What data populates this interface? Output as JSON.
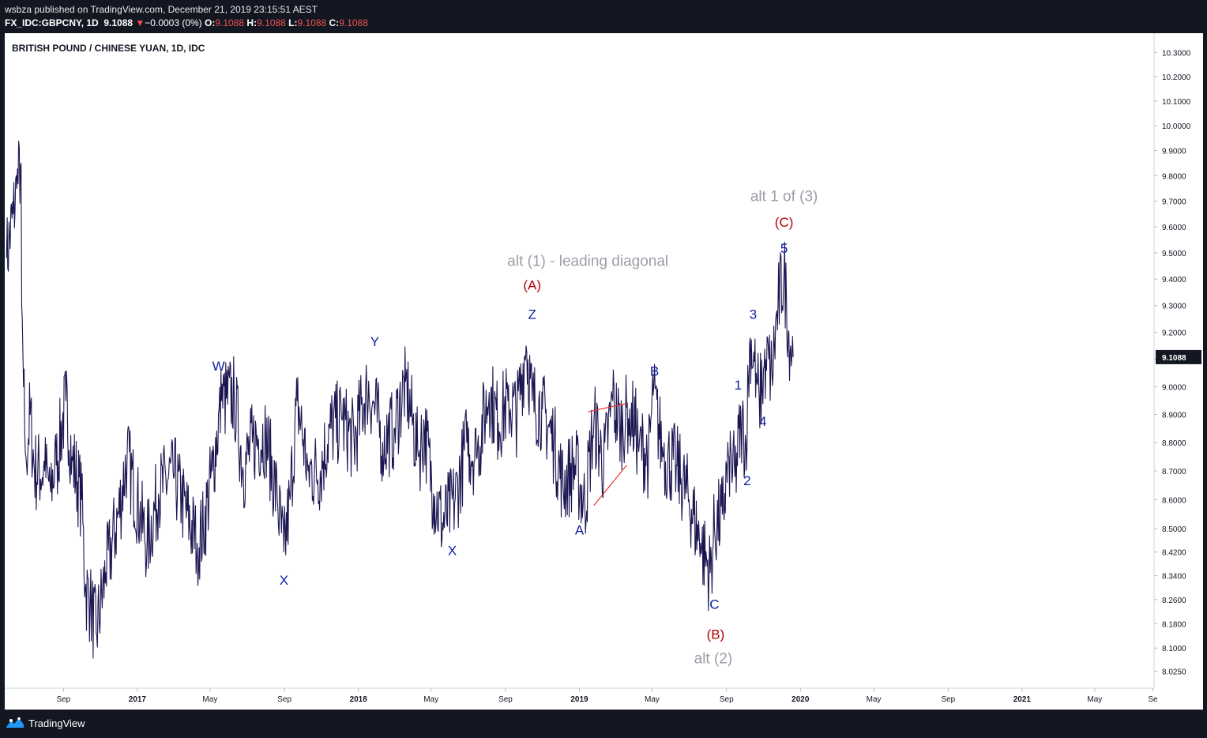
{
  "header": {
    "published_line": "wsbza published on TradingView.com, December 21, 2019 23:15:51 AEST",
    "symbol": "FX_IDC:GBPCNY, 1D",
    "last": "9.1088",
    "change_arrow": "▼",
    "change": "−0.0003 (0%)",
    "o_label": "O:",
    "o": "9.1088",
    "h_label": "H:",
    "h": "9.1088",
    "l_label": "L:",
    "l": "9.1088",
    "c_label": "C:",
    "c": "9.1088"
  },
  "footer": {
    "brand": "TradingView",
    "logo_icon": "tradingview-logo-icon"
  },
  "colors": {
    "background_frame": "#131722",
    "chart_background": "#ffffff",
    "price_series": "#1b1651",
    "wave_blue": "#0b1ea3",
    "wave_red": "#b00000",
    "wave_gray": "#9a9ea6",
    "trendline": "#ef3030",
    "last_price_tag": "#131722"
  },
  "chart_data": {
    "type": "line",
    "title": "BRITISH POUND / CHINESE YUAN, 1D, IDC",
    "y_axis": {
      "ticks": [
        "10.3000",
        "10.2000",
        "10.1000",
        "10.0000",
        "9.9000",
        "9.8000",
        "9.7000",
        "9.6000",
        "9.5000",
        "9.4000",
        "9.3000",
        "9.2000",
        "9.1000",
        "9.0000",
        "8.9000",
        "8.8000",
        "8.7000",
        "8.6000",
        "8.5000",
        "8.4200",
        "8.3400",
        "8.2600",
        "8.1800",
        "8.1000",
        "8.0250"
      ],
      "scale": "log",
      "ylim": [
        7.97,
        10.38
      ]
    },
    "x_axis": {
      "ticks": [
        "Sep",
        "2017",
        "May",
        "Sep",
        "2018",
        "May",
        "Sep",
        "2019",
        "May",
        "Sep",
        "2020",
        "May",
        "Sep",
        "2021",
        "May",
        "Se"
      ],
      "xlim": [
        "2016-05-27",
        "2021-08-07"
      ]
    },
    "last_price_tag": "9.1088",
    "series": [
      {
        "x": [
          "2016-05-30",
          "2016-06-10",
          "2016-06-16",
          "2016-06-23",
          "2016-06-24",
          "2016-06-27",
          "2016-07-01",
          "2016-07-08",
          "2016-07-15",
          "2016-08-01",
          "2016-08-10",
          "2016-08-20",
          "2016-09-05",
          "2016-09-15",
          "2016-10-01",
          "2016-10-07",
          "2016-10-15",
          "2016-10-25",
          "2016-11-10",
          "2016-12-01",
          "2016-12-15",
          "2017-01-05",
          "2017-01-17",
          "2017-02-05",
          "2017-03-01",
          "2017-03-15",
          "2017-04-10",
          "2017-04-20",
          "2017-05-05",
          "2017-05-20",
          "2017-06-10",
          "2017-06-25",
          "2017-07-10",
          "2017-08-01",
          "2017-08-20",
          "2017-08-31",
          "2017-09-10",
          "2017-09-22",
          "2017-10-10",
          "2017-10-30",
          "2017-11-15",
          "2017-12-05",
          "2017-12-25",
          "2018-01-15",
          "2018-01-25",
          "2018-02-10",
          "2018-03-01",
          "2018-03-20",
          "2018-04-10",
          "2018-04-20",
          "2018-05-05",
          "2018-05-20",
          "2018-06-10",
          "2018-06-29",
          "2018-07-15",
          "2018-08-05",
          "2018-08-20",
          "2018-09-05",
          "2018-09-20",
          "2018-10-05",
          "2018-10-15",
          "2018-11-01",
          "2018-11-20",
          "2018-12-05",
          "2018-12-25",
          "2019-01-10",
          "2019-01-25",
          "2019-02-10",
          "2019-02-25",
          "2019-03-10",
          "2019-03-25",
          "2019-04-10",
          "2019-04-25",
          "2019-05-03",
          "2019-05-20",
          "2019-06-10",
          "2019-07-01",
          "2019-07-20",
          "2019-08-05",
          "2019-08-12",
          "2019-08-25",
          "2019-09-05",
          "2019-09-15",
          "2019-09-25",
          "2019-10-03",
          "2019-10-10",
          "2019-10-20",
          "2019-10-25",
          "2019-11-05",
          "2019-11-15",
          "2019-11-25",
          "2019-12-05",
          "2019-12-13",
          "2019-12-16",
          "2019-12-20"
        ],
        "y": [
          9.48,
          9.65,
          9.75,
          9.85,
          9.3,
          9.0,
          8.75,
          8.9,
          8.7,
          8.7,
          8.65,
          8.72,
          8.95,
          8.75,
          8.6,
          8.3,
          8.25,
          8.15,
          8.35,
          8.55,
          8.75,
          8.55,
          8.45,
          8.62,
          8.7,
          8.6,
          8.45,
          8.5,
          8.7,
          8.95,
          8.97,
          8.7,
          8.8,
          8.83,
          8.6,
          8.42,
          8.6,
          8.95,
          8.7,
          8.7,
          8.85,
          8.88,
          8.8,
          9.0,
          8.95,
          8.8,
          8.85,
          9.02,
          8.75,
          8.85,
          8.62,
          8.52,
          8.6,
          8.8,
          8.75,
          8.98,
          8.87,
          8.95,
          8.9,
          9.15,
          8.95,
          8.92,
          8.8,
          8.65,
          8.72,
          8.58,
          8.88,
          8.72,
          8.95,
          8.85,
          8.92,
          8.8,
          8.75,
          8.97,
          8.75,
          8.72,
          8.6,
          8.45,
          8.35,
          8.5,
          8.55,
          8.75,
          8.68,
          8.87,
          8.8,
          9.18,
          9.05,
          8.95,
          9.1,
          9.05,
          9.3,
          9.43,
          9.2,
          9.15,
          9.1088
        ]
      }
    ],
    "trendlines": [
      {
        "x": [
          "2019-01-15",
          "2019-03-20"
        ],
        "y": [
          8.91,
          8.94
        ]
      },
      {
        "x": [
          "2019-01-25",
          "2019-03-20"
        ],
        "y": [
          8.58,
          8.72
        ]
      }
    ],
    "annotations": [
      {
        "text": "W",
        "x": "2017-05-15",
        "y": 9.06,
        "color": "blue"
      },
      {
        "text": "X",
        "x": "2017-08-31",
        "y": 8.31,
        "color": "blue"
      },
      {
        "text": "Y",
        "x": "2018-01-28",
        "y": 9.15,
        "color": "blue"
      },
      {
        "text": "X",
        "x": "2018-06-05",
        "y": 8.41,
        "color": "blue"
      },
      {
        "text": "Z",
        "x": "2018-10-15",
        "y": 9.25,
        "color": "blue"
      },
      {
        "text": "(A)",
        "x": "2018-10-15",
        "y": 9.36,
        "color": "red"
      },
      {
        "text": "alt (1) - leading diagonal",
        "x": "2019-01-15",
        "y": 9.45,
        "color": "gray"
      },
      {
        "text": "A",
        "x": "2019-01-01",
        "y": 8.48,
        "color": "blue"
      },
      {
        "text": "B",
        "x": "2019-05-05",
        "y": 9.04,
        "color": "blue"
      },
      {
        "text": "C",
        "x": "2019-08-12",
        "y": 8.23,
        "color": "blue"
      },
      {
        "text": "(B)",
        "x": "2019-08-14",
        "y": 8.13,
        "color": "red"
      },
      {
        "text": "alt (2)",
        "x": "2019-08-10",
        "y": 8.05,
        "color": "gray"
      },
      {
        "text": "1",
        "x": "2019-09-20",
        "y": 8.99,
        "color": "blue"
      },
      {
        "text": "2",
        "x": "2019-10-05",
        "y": 8.65,
        "color": "blue"
      },
      {
        "text": "3",
        "x": "2019-10-15",
        "y": 9.25,
        "color": "blue"
      },
      {
        "text": "4",
        "x": "2019-10-31",
        "y": 8.86,
        "color": "blue"
      },
      {
        "text": "5",
        "x": "2019-12-05",
        "y": 9.5,
        "color": "blue"
      },
      {
        "text": "(C)",
        "x": "2019-12-05",
        "y": 9.6,
        "color": "red"
      },
      {
        "text": "alt 1 of (3)",
        "x": "2019-12-05",
        "y": 9.7,
        "color": "gray"
      }
    ]
  }
}
